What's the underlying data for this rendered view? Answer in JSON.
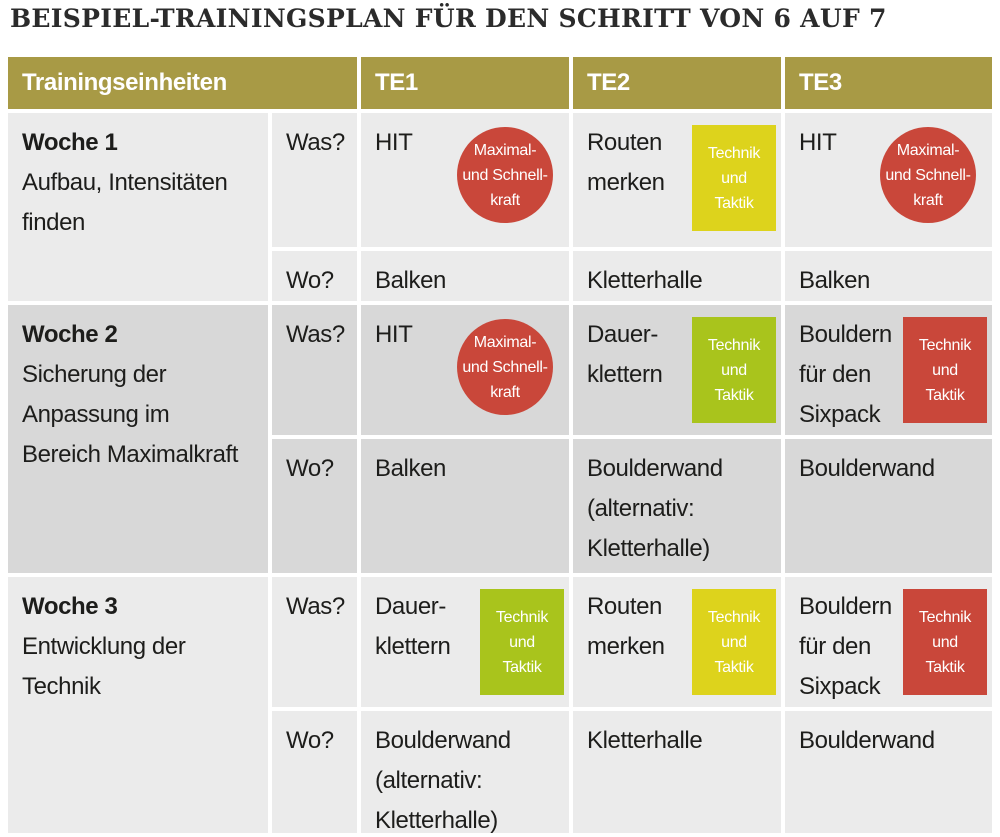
{
  "header": {
    "title": "BEISPIEL-TRAININGSPLAN FÜR DEN SCHRITT VON 6 AUF 7"
  },
  "table": {
    "columns": [
      "Trainingseinheiten",
      "TE1",
      "TE2",
      "TE3"
    ],
    "weeks": [
      {
        "name": "Woche 1",
        "description": [
          "Aufbau, Intensitäten",
          "finden"
        ],
        "rows": [
          {
            "label": "Was?",
            "cells": [
              {
                "lines": [
                  "HIT"
                ],
                "badge": {
                  "shape": "circle",
                  "color": "#c9473a",
                  "lines": [
                    "Maximal-",
                    "und Schnell-",
                    "kraft"
                  ]
                }
              },
              {
                "lines": [
                  "Routen",
                  "merken"
                ],
                "badge": {
                  "shape": "square",
                  "color": "#ddd31c",
                  "lines": [
                    "Technik",
                    "und",
                    "Taktik"
                  ]
                }
              },
              {
                "lines": [
                  "HIT"
                ],
                "badge": {
                  "shape": "circle",
                  "color": "#c9473a",
                  "lines": [
                    "Maximal-",
                    "und Schnell-",
                    "kraft"
                  ]
                }
              }
            ]
          },
          {
            "label": "Wo?",
            "cells": [
              {
                "lines": [
                  "Balken"
                ]
              },
              {
                "lines": [
                  "Kletterhalle"
                ]
              },
              {
                "lines": [
                  "Balken"
                ]
              }
            ]
          }
        ]
      },
      {
        "name": "Woche 2",
        "description": [
          "Sicherung der",
          "Anpassung im",
          "Bereich Maximalkraft"
        ],
        "rows": [
          {
            "label": "Was?",
            "cells": [
              {
                "lines": [
                  "HIT"
                ],
                "badge": {
                  "shape": "circle",
                  "color": "#c9473a",
                  "lines": [
                    "Maximal-",
                    "und Schnell-",
                    "kraft"
                  ]
                }
              },
              {
                "lines": [
                  "Dauer-",
                  "klettern"
                ],
                "badge": {
                  "shape": "square",
                  "color": "#a9c41c",
                  "lines": [
                    "Technik",
                    "und",
                    "Taktik"
                  ]
                }
              },
              {
                "lines": [
                  "Bouldern",
                  "für den",
                  "Sixpack"
                ],
                "badge": {
                  "shape": "square",
                  "color": "#c9473a",
                  "lines": [
                    "Technik",
                    "und",
                    "Taktik"
                  ]
                }
              }
            ]
          },
          {
            "label": "Wo?",
            "cells": [
              {
                "lines": [
                  "Balken"
                ]
              },
              {
                "lines": [
                  "Boulderwand",
                  "(alternativ:",
                  "Kletterhalle)"
                ]
              },
              {
                "lines": [
                  "Boulderwand"
                ]
              }
            ]
          }
        ]
      },
      {
        "name": "Woche 3",
        "description": [
          "Entwicklung der",
          "Technik"
        ],
        "rows": [
          {
            "label": "Was?",
            "cells": [
              {
                "lines": [
                  "Dauer-",
                  "klettern"
                ],
                "badge": {
                  "shape": "square",
                  "color": "#a9c41c",
                  "lines": [
                    "Technik",
                    "und",
                    "Taktik"
                  ]
                }
              },
              {
                "lines": [
                  "Routen",
                  "merken"
                ],
                "badge": {
                  "shape": "square",
                  "color": "#ddd31c",
                  "lines": [
                    "Technik",
                    "und",
                    "Taktik"
                  ]
                }
              },
              {
                "lines": [
                  "Bouldern",
                  "für den",
                  "Sixpack"
                ],
                "badge": {
                  "shape": "square",
                  "color": "#c9473a",
                  "lines": [
                    "Technik",
                    "und",
                    "Taktik"
                  ]
                }
              }
            ]
          },
          {
            "label": "Wo?",
            "cells": [
              {
                "lines": [
                  "Boulderwand",
                  "(alternativ:",
                  "Kletterhalle)"
                ]
              },
              {
                "lines": [
                  "Kletterhalle"
                ]
              },
              {
                "lines": [
                  "Boulderwand"
                ]
              }
            ]
          }
        ]
      }
    ]
  }
}
